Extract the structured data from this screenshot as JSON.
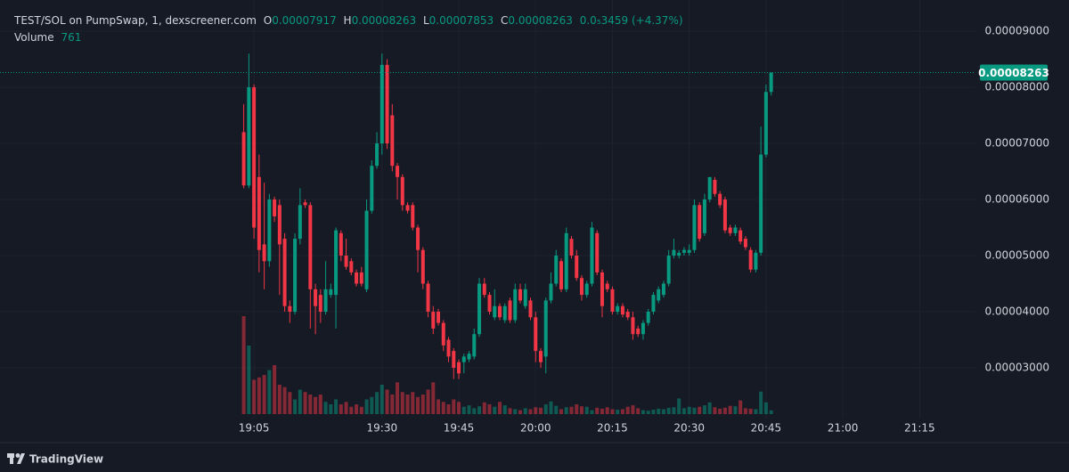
{
  "chart_data": {
    "type": "candlestick",
    "legend": {
      "symbol": "TEST/SOL on PumpSwap, 1, dexscreener.com",
      "o_label": "O",
      "o": "0.00007917",
      "h_label": "H",
      "h": "0.00008263",
      "l_label": "L",
      "l": "0.00007853",
      "c_label": "C",
      "c": "0.00008263",
      "change": "0.0₅3459 (+4.37%)",
      "volume_label": "Volume",
      "volume": "761"
    },
    "up_color": "#089981",
    "down_color": "#f23645",
    "grid": true,
    "x": [
      1143,
      1144,
      1145,
      1146,
      1147,
      1148,
      1149,
      1150,
      1151,
      1152,
      1153,
      1154,
      1155,
      1156,
      1157,
      1158,
      1159,
      1160,
      1161,
      1162,
      1163,
      1164,
      1165,
      1166,
      1167,
      1168,
      1169,
      1170,
      1171,
      1172,
      1173,
      1174,
      1175,
      1176,
      1177,
      1178,
      1179,
      1180,
      1181,
      1182,
      1183,
      1184,
      1185,
      1186,
      1187,
      1188,
      1189,
      1190,
      1191,
      1192,
      1193,
      1194,
      1195,
      1196,
      1197,
      1198,
      1199,
      1200,
      1201,
      1202,
      1203,
      1204,
      1205,
      1206,
      1207,
      1208,
      1209,
      1210,
      1211,
      1212,
      1213,
      1214,
      1215,
      1216,
      1217,
      1218,
      1219,
      1220,
      1221,
      1222,
      1223,
      1224,
      1225,
      1226,
      1227,
      1228,
      1229,
      1230,
      1231,
      1232,
      1233,
      1234,
      1235,
      1236,
      1237,
      1238,
      1239,
      1240,
      1241,
      1242,
      1243,
      1244,
      1245,
      1246
    ],
    "open": [
      7.2e-05,
      6.25e-05,
      8e-05,
      6.4e-05,
      5.2e-05,
      4.9e-05,
      6e-05,
      5.9e-05,
      5.3e-05,
      4.1e-05,
      4e-05,
      5.3e-05,
      5.95e-05,
      5.9e-05,
      4.4e-05,
      4.3e-05,
      4e-05,
      4.3e-05,
      4.3e-05,
      5.4e-05,
      5e-05,
      4.9e-05,
      4.7e-05,
      4.7e-05,
      4.4e-05,
      5.8e-05,
      6.6e-05,
      7e-05,
      8.4e-05,
      7.5e-05,
      6.6e-05,
      6.4e-05,
      5.9e-05,
      5.9e-05,
      5.5e-05,
      5.1e-05,
      4.5e-05,
      4e-05,
      4e-05,
      3.8e-05,
      3.5e-05,
      3.3e-05,
      3.1e-05,
      3.1e-05,
      3.15e-05,
      3.2e-05,
      3.6e-05,
      4.5e-05,
      4.3e-05,
      3.9e-05,
      4.1e-05,
      3.85e-05,
      4.2e-05,
      3.85e-05,
      4.4e-05,
      4.1e-05,
      4.2e-05,
      3.9e-05,
      3.3e-05,
      3.2e-05,
      4.2e-05,
      4.5e-05,
      4.9e-05,
      4.4e-05,
      5.3e-05,
      5e-05,
      4.6e-05,
      4.3e-05,
      4.5e-05,
      5.4e-05,
      4.7e-05,
      4.5e-05,
      4.4e-05,
      4e-05,
      4.1e-05,
      4e-05,
      3.9e-05,
      3.7e-05,
      3.6e-05,
      3.8e-05,
      4e-05,
      4.2e-05,
      4.3e-05,
      4.5e-05,
      5e-05,
      5e-05,
      5.05e-05,
      5.05e-05,
      5.1e-05,
      5.9e-05,
      5.4e-05,
      6e-05,
      6.35e-05,
      6.1e-05,
      6e-05,
      5.5e-05,
      5.4e-05,
      5.45e-05,
      5.3e-05,
      5.1e-05,
      4.75e-05,
      5.05e-05,
      6.8e-05,
      7.917e-05
    ],
    "high": [
      7.7e-05,
      8.6e-05,
      8.05e-05,
      6.8e-05,
      6.3e-05,
      6.1e-05,
      6.05e-05,
      6e-05,
      5.4e-05,
      4.2e-05,
      5.4e-05,
      6.2e-05,
      6e-05,
      5.95e-05,
      4.5e-05,
      4.4e-05,
      4.9e-05,
      4.5e-05,
      5.5e-05,
      5.45e-05,
      5.3e-05,
      4.95e-05,
      4.75e-05,
      4.8e-05,
      6e-05,
      6.7e-05,
      7.2e-05,
      8.6e-05,
      8.5e-05,
      7.7e-05,
      6.65e-05,
      6.45e-05,
      5.95e-05,
      5.95e-05,
      5.55e-05,
      5.15e-05,
      4.55e-05,
      4.1e-05,
      4.05e-05,
      3.85e-05,
      3.55e-05,
      3.35e-05,
      3.15e-05,
      3.25e-05,
      3.3e-05,
      3.7e-05,
      4.6e-05,
      4.6e-05,
      4.35e-05,
      4.4e-05,
      4.15e-05,
      4.15e-05,
      4.25e-05,
      4.5e-05,
      4.5e-05,
      4.5e-05,
      4.25e-05,
      4e-05,
      3.35e-05,
      4.25e-05,
      4.7e-05,
      5.1e-05,
      4.95e-05,
      5.5e-05,
      5.35e-05,
      5.1e-05,
      4.65e-05,
      4.55e-05,
      5.6e-05,
      5.45e-05,
      4.75e-05,
      4.55e-05,
      4.45e-05,
      4.15e-05,
      4.15e-05,
      4.05e-05,
      4e-05,
      3.75e-05,
      3.85e-05,
      4.05e-05,
      4.35e-05,
      4.45e-05,
      4.55e-05,
      5.1e-05,
      5.3e-05,
      5.1e-05,
      5.15e-05,
      5.2e-05,
      6e-05,
      5.95e-05,
      6.1e-05,
      6.4e-05,
      6.4e-05,
      6.15e-05,
      6.05e-05,
      5.55e-05,
      5.55e-05,
      5.5e-05,
      5.35e-05,
      5.15e-05,
      5.1e-05,
      7.3e-05,
      8.05e-05,
      8.263e-05
    ],
    "low": [
      6.2e-05,
      6.2e-05,
      5.3e-05,
      4.7e-05,
      4.4e-05,
      4.8e-05,
      5.6e-05,
      4.3e-05,
      4e-05,
      3.8e-05,
      3.95e-05,
      5.2e-05,
      5.85e-05,
      3.7e-05,
      3.6e-05,
      3.8e-05,
      3.95e-05,
      4.25e-05,
      3.7e-05,
      4.9e-05,
      4.75e-05,
      4.65e-05,
      4.45e-05,
      4.45e-05,
      4.35e-05,
      5.75e-05,
      6.55e-05,
      6.8e-05,
      6.9e-05,
      6.5e-05,
      6e-05,
      5.8e-05,
      5.75e-05,
      5.45e-05,
      4.7e-05,
      4.4e-05,
      3.9e-05,
      3.6e-05,
      3.75e-05,
      3.3e-05,
      3.1e-05,
      2.8e-05,
      2.8e-05,
      2.9e-05,
      3.1e-05,
      3.15e-05,
      3.55e-05,
      4.25e-05,
      3.95e-05,
      3.85e-05,
      3.85e-05,
      3.8e-05,
      3.8e-05,
      3.8e-05,
      4.15e-05,
      4.05e-05,
      3.85e-05,
      3.1e-05,
      3e-05,
      2.9e-05,
      4.15e-05,
      4.45e-05,
      4.35e-05,
      4.35e-05,
      4.95e-05,
      4.55e-05,
      4.2e-05,
      4.25e-05,
      4.45e-05,
      4.65e-05,
      3.9e-05,
      4.35e-05,
      3.95e-05,
      3.95e-05,
      3.9e-05,
      3.85e-05,
      3.5e-05,
      3.55e-05,
      3.5e-05,
      3.75e-05,
      3.95e-05,
      4.15e-05,
      4.25e-05,
      4.45e-05,
      4.95e-05,
      4.95e-05,
      5e-05,
      5e-05,
      5.05e-05,
      5.25e-05,
      5.35e-05,
      5.95e-05,
      6.05e-05,
      5.85e-05,
      5.4e-05,
      5.35e-05,
      5.35e-05,
      5.2e-05,
      5.1e-05,
      4.7e-05,
      4.7e-05,
      5e-05,
      6.75e-05,
      7.853e-05
    ],
    "close": [
      6.25e-05,
      8e-05,
      5.5e-05,
      5.1e-05,
      4.9e-05,
      6e-05,
      5.7e-05,
      5.2e-05,
      4.1e-05,
      4e-05,
      5.3e-05,
      5.9e-05,
      5.9e-05,
      4.4e-05,
      4.1e-05,
      4e-05,
      4.4e-05,
      4.4e-05,
      5.45e-05,
      5e-05,
      4.8e-05,
      4.7e-05,
      4.5e-05,
      4.5e-05,
      5.8e-05,
      6.6e-05,
      7e-05,
      8.4e-05,
      7e-05,
      6.6e-05,
      6.4e-05,
      5.9e-05,
      5.8e-05,
      5.5e-05,
      5.1e-05,
      4.5e-05,
      4e-05,
      3.7e-05,
      3.8e-05,
      3.4e-05,
      3.2e-05,
      3e-05,
      2.9e-05,
      3.2e-05,
      3.25e-05,
      3.6e-05,
      4.5e-05,
      4.3e-05,
      4e-05,
      4.1e-05,
      3.9e-05,
      4.1e-05,
      3.85e-05,
      4.4e-05,
      4.2e-05,
      4.4e-05,
      3.9e-05,
      3.3e-05,
      3.1e-05,
      4.2e-05,
      4.5e-05,
      5e-05,
      4.4e-05,
      5.4e-05,
      5e-05,
      4.6e-05,
      4.3e-05,
      4.5e-05,
      5.5e-05,
      4.7e-05,
      4.1e-05,
      4.4e-05,
      4e-05,
      4.1e-05,
      3.95e-05,
      3.9e-05,
      3.6e-05,
      3.6e-05,
      3.8e-05,
      4e-05,
      4.3e-05,
      4.4e-05,
      4.5e-05,
      5e-05,
      5.1e-05,
      5.05e-05,
      5.1e-05,
      5.1e-05,
      5.9e-05,
      5.3e-05,
      6e-05,
      6.4e-05,
      6.1e-05,
      5.9e-05,
      5.45e-05,
      5.4e-05,
      5.5e-05,
      5.25e-05,
      5.15e-05,
      4.75e-05,
      5.05e-05,
      6.8e-05,
      7.917e-05,
      8.263e-05
    ],
    "volume": [
      20000,
      14000,
      7000,
      7500,
      8000,
      9000,
      10000,
      6000,
      5500,
      4500,
      3000,
      5000,
      4500,
      4000,
      3500,
      4000,
      2500,
      2000,
      3000,
      2000,
      2500,
      1500,
      2000,
      1500,
      3000,
      3500,
      4500,
      6000,
      5000,
      4000,
      6500,
      4500,
      4000,
      4500,
      3500,
      4000,
      5000,
      6500,
      3000,
      2500,
      2000,
      3000,
      2500,
      1500,
      1800,
      1200,
      1600,
      2400,
      2000,
      1500,
      2500,
      1800,
      1200,
      1000,
      800,
      1200,
      1000,
      1400,
      1300,
      2000,
      2600,
      1700,
      1000,
      1400,
      1500,
      2000,
      1600,
      1500,
      800,
      1300,
      1100,
      1400,
      1000,
      900,
      1000,
      1500,
      1800,
      1200,
      800,
      700,
      900,
      1100,
      1000,
      1300,
      1400,
      3200,
      1200,
      1500,
      1300,
      1500,
      1800,
      2400,
      1400,
      1100,
      1300,
      1700,
      1600,
      2800,
      1200,
      1100,
      1000,
      4600,
      2400,
      761
    ],
    "xlim": [
      1095.4,
      1285.9
    ],
    "xticks": [
      {
        "value": 1145,
        "label": "19:05"
      },
      {
        "value": 1170,
        "label": "19:30"
      },
      {
        "value": 1185,
        "label": "19:45"
      },
      {
        "value": 1200,
        "label": "20:00"
      },
      {
        "value": 1215,
        "label": "20:15"
      },
      {
        "value": 1230,
        "label": "20:30"
      },
      {
        "value": 1245,
        "label": "20:45"
      },
      {
        "value": 1260,
        "label": "21:00"
      },
      {
        "value": 1275,
        "label": "21:15"
      }
    ],
    "ylim": [
      2.095e-05,
      9.556e-05
    ],
    "yticks": [
      {
        "value": 3e-05,
        "label": "0.00003000"
      },
      {
        "value": 4e-05,
        "label": "0.00004000"
      },
      {
        "value": 5e-05,
        "label": "0.00005000"
      },
      {
        "value": 6e-05,
        "label": "0.00006000"
      },
      {
        "value": 7e-05,
        "label": "0.00007000"
      },
      {
        "value": 8e-05,
        "label": "0.00008000"
      },
      {
        "value": 9e-05,
        "label": "0.00009000"
      }
    ],
    "last_price": {
      "value": 8.263e-05,
      "label": "0.00008263"
    },
    "footer": "TradingView"
  }
}
